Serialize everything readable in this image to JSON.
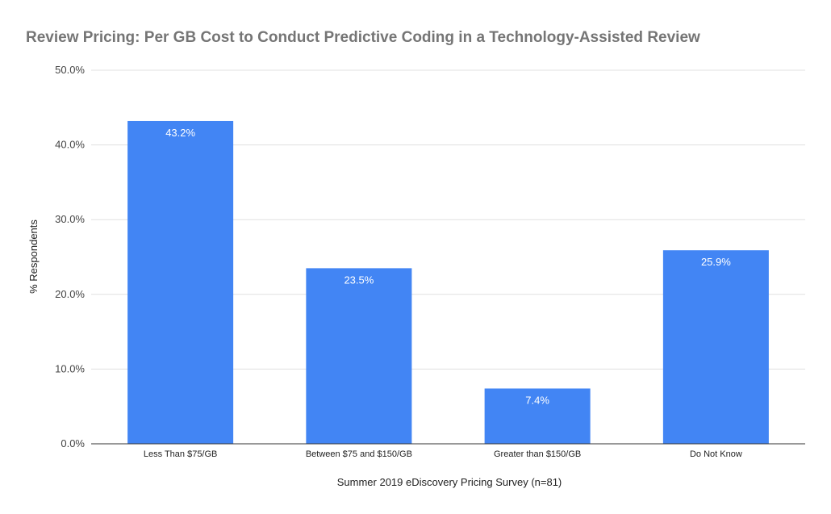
{
  "chart_data": {
    "type": "bar",
    "title": "Review Pricing: Per GB Cost to Conduct Predictive Coding in a Technology-Assisted Review",
    "xlabel": "Summer 2019 eDiscovery Pricing Survey (n=81)",
    "ylabel": "% Respondents",
    "categories": [
      "Less Than $75/GB",
      "Between $75 and $150/GB",
      "Greater than $150/GB",
      "Do Not Know"
    ],
    "values": [
      43.2,
      23.5,
      7.4,
      25.9
    ],
    "data_labels": [
      "43.2%",
      "23.5%",
      "7.4%",
      "25.9%"
    ],
    "ylim": [
      0,
      50
    ],
    "yticks": [
      0,
      10,
      20,
      30,
      40,
      50
    ],
    "ytick_labels": [
      "0.0%",
      "10.0%",
      "20.0%",
      "30.0%",
      "40.0%",
      "50.0%"
    ],
    "grid": true,
    "legend": "none",
    "bar_color": "#4285f4",
    "grid_color": "#e0e0e0",
    "axis_color": "#333333"
  }
}
